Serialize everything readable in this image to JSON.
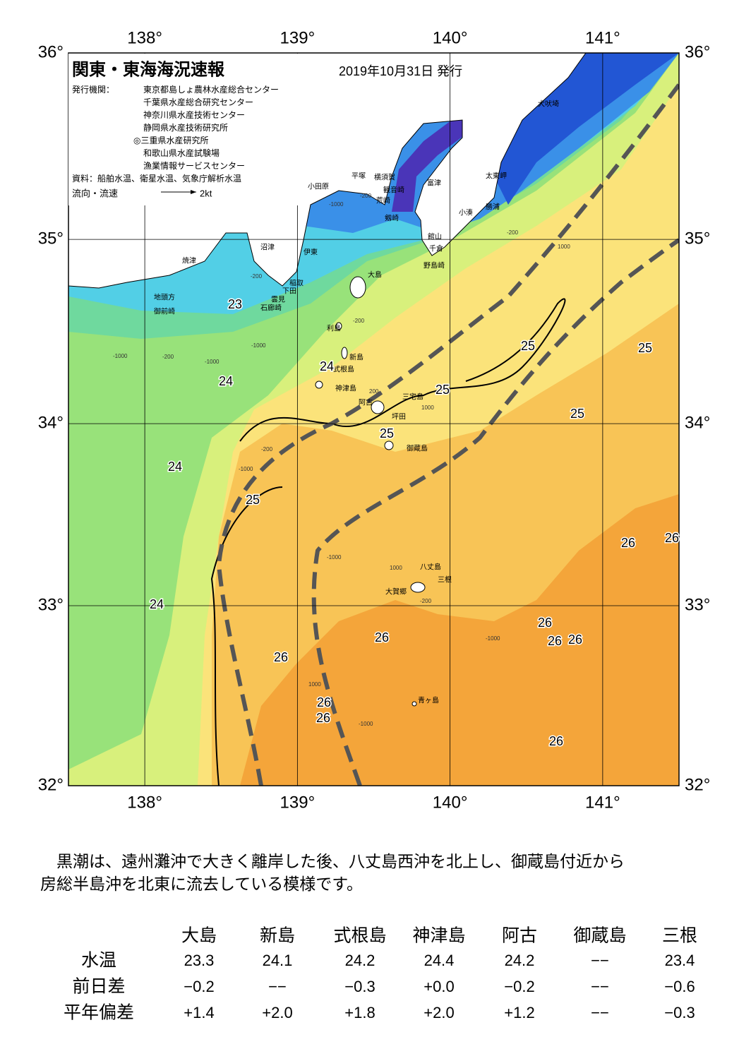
{
  "header": {
    "title": "関東・東海海況速報",
    "date": "2019年10月31日 発行",
    "issuer_label": "発行機関：",
    "issuers": [
      "東京都島しょ農林水産総合センター",
      "千葉県水産総合研究センター",
      "神奈川県水産技術センター",
      "静岡県水産技術研究所",
      "◎三重県水産研究所",
      "和歌山県水産試験場",
      "漁業情報サービスセンター"
    ],
    "sources": "資料：船舶水温、衛星水温、気象庁解析水温",
    "flow_label": "流向・流速",
    "flow_scale": "2kt"
  },
  "map": {
    "lon_range": [
      137.5,
      141.5
    ],
    "lat_range": [
      32,
      36
    ],
    "lon_ticks": [
      {
        "value": 138,
        "label": "138°"
      },
      {
        "value": 139,
        "label": "139°"
      },
      {
        "value": 140,
        "label": "140°"
      },
      {
        "value": 141,
        "label": "141°"
      }
    ],
    "lat_ticks": [
      {
        "value": 32,
        "label": "32°"
      },
      {
        "value": 33,
        "label": "33°"
      },
      {
        "value": 34,
        "label": "34°"
      },
      {
        "value": 35,
        "label": "35°"
      },
      {
        "value": 36,
        "label": "36°"
      }
    ],
    "place_names": [
      "犬吠埼",
      "太東岬",
      "勝浦",
      "小湊",
      "富津",
      "横須賀",
      "観音崎",
      "平塚",
      "小田原",
      "荒崎",
      "剱崎",
      "館山",
      "千倉",
      "野島崎",
      "沼津",
      "伊東",
      "焼津",
      "稲取",
      "下田",
      "雲見",
      "石廊崎",
      "地頭方",
      "御前崎",
      "大島",
      "利島",
      "新島",
      "式根島",
      "神津島",
      "三宅島",
      "阿古",
      "坪田",
      "御蔵島",
      "八丈島",
      "三根",
      "大賀郷",
      "青ヶ島"
    ],
    "contour_labels": [
      23,
      24,
      24,
      24,
      24,
      25,
      25,
      25,
      25,
      25,
      25,
      26,
      26,
      26,
      26,
      26,
      26,
      26,
      26,
      26,
      26
    ],
    "depth_labels": [
      "-200",
      "-1000",
      "-200",
      "-1000",
      "-200",
      "-1000",
      "-1000",
      "-200",
      "200",
      "1000",
      "-200",
      "-1000",
      "-1000",
      "1000",
      "-200",
      "-1000",
      "1000",
      "-1000",
      "-200",
      "1000"
    ]
  },
  "text": {
    "lines": [
      "黒潮は、遠州灘沖で大きく離岸した後、八丈島西沖を北上し、御蔵島付近から",
      "房総半島沖を北東に流去している模様です。"
    ]
  },
  "table": {
    "columns": [
      "大島",
      "新島",
      "式根島",
      "神津島",
      "阿古",
      "御蔵島",
      "三根"
    ],
    "rows": [
      {
        "label": "水温",
        "cells": [
          "23.3",
          "24.1",
          "24.2",
          "24.4",
          "24.2",
          "−−",
          "23.4"
        ]
      },
      {
        "label": "前日差",
        "cells": [
          "−0.2",
          "−−",
          "−0.3",
          "+0.0",
          "−0.2",
          "−−",
          "−0.6"
        ]
      },
      {
        "label": "平年偏差",
        "cells": [
          "+1.4",
          "+2.0",
          "+1.8",
          "+2.0",
          "+1.2",
          "−−",
          "−0.3"
        ]
      }
    ]
  }
}
